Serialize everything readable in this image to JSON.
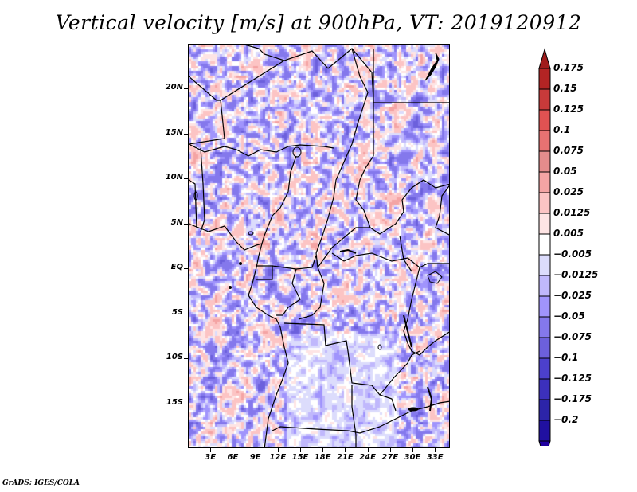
{
  "title": "Vertical velocity [m/s] at 900hPa, VT: 2019120912",
  "footer": "GrADS: IGES/COLA",
  "map": {
    "variable": "Vertical velocity",
    "units": "m/s",
    "level": "900hPa",
    "valid_time": "2019120912",
    "lon_range": [
      0,
      35
    ],
    "lat_range": [
      -20,
      25
    ],
    "lat_labels": [
      {
        "text": "20N",
        "lat": 20
      },
      {
        "text": "15N",
        "lat": 15
      },
      {
        "text": "10N",
        "lat": 10
      },
      {
        "text": "5N",
        "lat": 5
      },
      {
        "text": "EQ",
        "lat": 0
      },
      {
        "text": "5S",
        "lat": -5
      },
      {
        "text": "10S",
        "lat": -10
      },
      {
        "text": "15S",
        "lat": -15
      }
    ],
    "lon_labels": [
      {
        "text": "3E",
        "lon": 3
      },
      {
        "text": "6E",
        "lon": 6
      },
      {
        "text": "9E",
        "lon": 9
      },
      {
        "text": "12E",
        "lon": 12
      },
      {
        "text": "15E",
        "lon": 15
      },
      {
        "text": "18E",
        "lon": 18
      },
      {
        "text": "21E",
        "lon": 21
      },
      {
        "text": "24E",
        "lon": 24
      },
      {
        "text": "27E",
        "lon": 27
      },
      {
        "text": "30E",
        "lon": 30
      },
      {
        "text": "33E",
        "lon": 33
      }
    ]
  },
  "colorbar": {
    "labels": [
      "0.175",
      "0.15",
      "0.125",
      "0.1",
      "0.075",
      "0.05",
      "0.025",
      "0.0125",
      "0.005",
      "-0.005",
      "-0.0125",
      "-0.025",
      "-0.05",
      "-0.075",
      "-0.1",
      "-0.125",
      "-0.175",
      "-0.2"
    ],
    "colors": [
      "#b32424",
      "#c83a3a",
      "#e05252",
      "#e87272",
      "#e48c8c",
      "#f4a4a4",
      "#fcc4c4",
      "#fee4e4",
      "#ffffff",
      "#dcdcfc",
      "#c0b8fc",
      "#a094fc",
      "#8478ec",
      "#6c60dc",
      "#4c40cc",
      "#3c30bc",
      "#2c24a8",
      "#2010a0"
    ],
    "top_arrow_color": "#a01c1c",
    "bottom_arrow_color": "#2000a0"
  }
}
